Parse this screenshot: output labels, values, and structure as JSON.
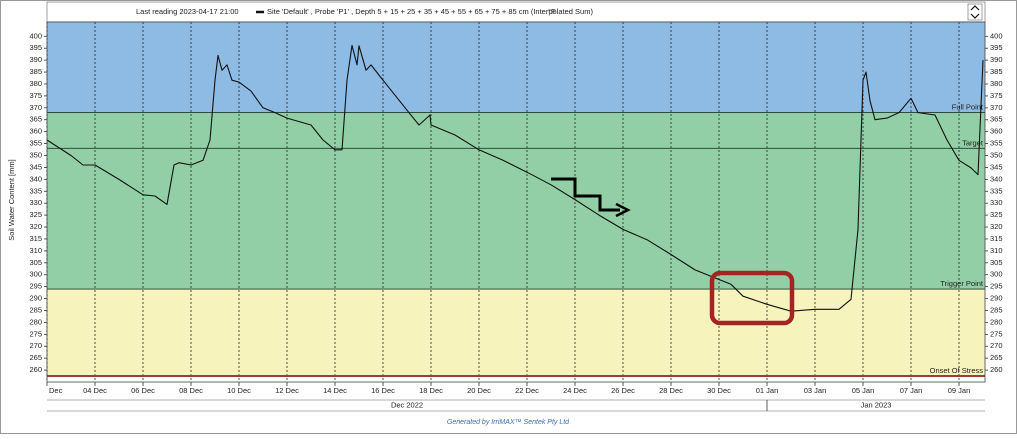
{
  "chart_data": {
    "type": "line",
    "header": "Last reading 2023-04-17 21:00",
    "unit_note": "°F",
    "ylabel": "Soil Water Content [mm]",
    "footer": "Generated by IrriMAX™ Sentek Pty Ltd",
    "months": [
      {
        "label": "Dec 2022",
        "from": "2022-12-02 00:00",
        "to": "2023-01-01 00:00"
      },
      {
        "label": "Jan 2023",
        "from": "2023-01-01 00:00",
        "to": "2023-01-10 02:00"
      }
    ],
    "xlim": [
      "2022-12-02 00:00",
      "2023-01-10 02:00"
    ],
    "ylim": [
      255,
      406
    ],
    "xticks": [
      {
        "value": "2022-12-02 00:00",
        "label": "Dec"
      },
      {
        "value": "2022-12-04 00:00",
        "label": "04 Dec"
      },
      {
        "value": "2022-12-06 00:00",
        "label": "06 Dec"
      },
      {
        "value": "2022-12-08 00:00",
        "label": "08 Dec"
      },
      {
        "value": "2022-12-10 00:00",
        "label": "10 Dec"
      },
      {
        "value": "2022-12-12 00:00",
        "label": "12 Dec"
      },
      {
        "value": "2022-12-14 00:00",
        "label": "14 Dec"
      },
      {
        "value": "2022-12-16 00:00",
        "label": "16 Dec"
      },
      {
        "value": "2022-12-18 00:00",
        "label": "18 Dec"
      },
      {
        "value": "2022-12-20 00:00",
        "label": "20 Dec"
      },
      {
        "value": "2022-12-22 00:00",
        "label": "22 Dec"
      },
      {
        "value": "2022-12-24 00:00",
        "label": "24 Dec"
      },
      {
        "value": "2022-12-26 00:00",
        "label": "26 Dec"
      },
      {
        "value": "2022-12-28 00:00",
        "label": "28 Dec"
      },
      {
        "value": "2022-12-30 00:00",
        "label": "30 Dec"
      },
      {
        "value": "2023-01-01 00:00",
        "label": "01 Jan"
      },
      {
        "value": "2023-01-03 00:00",
        "label": "03 Jan"
      },
      {
        "value": "2023-01-05 00:00",
        "label": "05 Jan"
      },
      {
        "value": "2023-01-07 00:00",
        "label": "07 Jan"
      },
      {
        "value": "2023-01-09 00:00",
        "label": "09 Jan"
      }
    ],
    "yticks": [
      260,
      265,
      270,
      275,
      280,
      285,
      290,
      295,
      300,
      305,
      310,
      315,
      320,
      325,
      330,
      335,
      340,
      345,
      350,
      355,
      360,
      365,
      370,
      375,
      380,
      385,
      390,
      395,
      400
    ],
    "bands": [
      {
        "from": 368,
        "to": 406,
        "color": "#8dbbe3"
      },
      {
        "from": 294,
        "to": 368,
        "color": "#92cfa6"
      },
      {
        "from": 257.5,
        "to": 294,
        "color": "#f7f3bd"
      }
    ],
    "ref_lines": [
      {
        "label": "Full Point",
        "value": 368,
        "color": "#1f3b2a"
      },
      {
        "label": "Target",
        "value": 353,
        "color": "#1f3b2a"
      },
      {
        "label": "Trigger Point",
        "value": 294,
        "color": "#1f3b2a"
      },
      {
        "label": "Onset Of Stress",
        "value": 257.5,
        "color": "#a33a3a"
      }
    ],
    "x": [
      "2022-12-02 00:00",
      "2022-12-03 00:00",
      "2022-12-03 12:00",
      "2022-12-04 00:00",
      "2022-12-05 00:00",
      "2022-12-06 00:00",
      "2022-12-06 12:00",
      "2022-12-07 00:00",
      "2022-12-07 07:00",
      "2022-12-07 12:00",
      "2022-12-08 00:00",
      "2022-12-08 12:00",
      "2022-12-08 19:00",
      "2022-12-09 00:00",
      "2022-12-09 03:00",
      "2022-12-09 07:00",
      "2022-12-09 12:00",
      "2022-12-09 17:00",
      "2022-12-10 00:00",
      "2022-12-10 12:00",
      "2022-12-11 00:00",
      "2022-12-11 12:00",
      "2022-12-12 00:00",
      "2022-12-13 00:00",
      "2022-12-13 12:00",
      "2022-12-14 00:00",
      "2022-12-14 07:00",
      "2022-12-14 12:00",
      "2022-12-14 17:00",
      "2022-12-14 22:00",
      "2022-12-15 00:00",
      "2022-12-15 07:00",
      "2022-12-15 12:00",
      "2022-12-16 00:00",
      "2022-12-16 12:00",
      "2022-12-17 00:00",
      "2022-12-17 12:00",
      "2022-12-17 23:00",
      "2022-12-18 00:00",
      "2022-12-18 12:00",
      "2022-12-19 00:00",
      "2022-12-20 00:00",
      "2022-12-21 00:00",
      "2022-12-22 00:00",
      "2022-12-23 00:00",
      "2022-12-24 00:00",
      "2022-12-25 00:00",
      "2022-12-26 00:00",
      "2022-12-27 00:00",
      "2022-12-28 00:00",
      "2022-12-29 00:00",
      "2022-12-30 00:00",
      "2022-12-30 12:00",
      "2022-12-31 00:00",
      "2023-01-01 00:00",
      "2023-01-02 00:00",
      "2023-01-03 00:00",
      "2023-01-04 00:00",
      "2023-01-04 12:00",
      "2023-01-04 19:00",
      "2023-01-05 00:00",
      "2023-01-05 03:00",
      "2023-01-05 07:00",
      "2023-01-05 12:00",
      "2023-01-06 00:00",
      "2023-01-06 12:00",
      "2023-01-07 00:00",
      "2023-01-07 07:00",
      "2023-01-08 00:00",
      "2023-01-08 12:00",
      "2023-01-09 00:00",
      "2023-01-09 12:00",
      "2023-01-09 19:00",
      "2023-01-10 00:00"
    ],
    "series": [
      {
        "name": "Site 'Default' , Probe 'P1' , Depth 5 + 15 + 25 + 35 + 45 + 55 + 65 + 75 + 85 cm (Interpolated Sum)",
        "color": "#111111",
        "values": [
          356.5,
          350,
          346,
          346,
          340,
          333.5,
          333,
          329.5,
          346,
          347,
          346,
          348,
          356.5,
          381.6,
          392,
          385.8,
          388,
          381.6,
          380.8,
          377,
          370,
          368,
          365.7,
          362.8,
          356.5,
          352.4,
          352.4,
          381.6,
          396.2,
          388,
          396,
          385.8,
          388,
          381.6,
          375.3,
          369,
          362.8,
          367,
          362.8,
          360.7,
          358.6,
          352.4,
          348,
          343,
          337.7,
          331.5,
          325,
          319,
          314.7,
          308.5,
          302,
          298,
          296,
          291,
          287.6,
          284.7,
          285.5,
          285.5,
          289.7,
          319,
          381.6,
          385,
          373,
          365,
          365.7,
          368,
          374,
          368,
          367,
          356.5,
          348,
          344.8,
          342,
          390
        ]
      }
    ]
  }
}
